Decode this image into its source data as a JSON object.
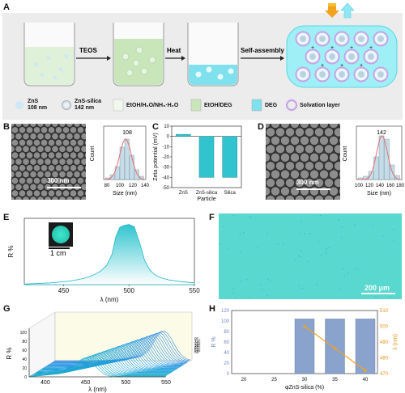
{
  "panels": {
    "A": {
      "letter": "A",
      "step1": "TEOS",
      "step2": "Heat",
      "step3": "Self-assembly",
      "legend": [
        {
          "label_line1": "ZnS",
          "label_line2": "108 nm"
        },
        {
          "label_line1": "ZnS-silica",
          "label_line2": "142 nm"
        },
        {
          "label_line1": "EtOH/H₂O/NH₃·H₂O",
          "label_line2": ""
        },
        {
          "label_line1": "EtOH/DEG",
          "label_line2": ""
        },
        {
          "label_line1": "DEG",
          "label_line2": ""
        },
        {
          "label_line1": "Solvation layer",
          "label_line2": ""
        }
      ]
    },
    "B": {
      "letter": "B",
      "scalebar": "300 nm"
    },
    "B_hist": {
      "peak_label": "108",
      "xlabel": "Size (nm)",
      "ylabel": "Count",
      "xticks": [
        "80",
        "100",
        "120",
        "140"
      ]
    },
    "C": {
      "letter": "C"
    },
    "D": {
      "letter": "D",
      "scalebar": "300 nm"
    },
    "D_hist": {
      "peak_label": "142",
      "xlabel": "Size (nm)",
      "ylabel": "Count",
      "xticks": [
        "100",
        "120",
        "140",
        "160",
        "180"
      ]
    },
    "E": {
      "letter": "E",
      "inset_scalebar": "1 cm"
    },
    "F": {
      "letter": "F",
      "scalebar": "200 μm"
    },
    "G": {
      "letter": "G"
    },
    "H": {
      "letter": "H"
    }
  },
  "chart_data": [
    {
      "id": "C",
      "type": "bar",
      "categories": [
        "ZnS",
        "ZnS-silica",
        "Silica"
      ],
      "values": [
        2,
        -40,
        -40
      ],
      "xlabel": "Particle",
      "ylabel": "Zeta potential (mV)",
      "ylim": [
        -50,
        10
      ],
      "yticks": [
        10,
        0,
        -10,
        -20,
        -30,
        -40,
        -50
      ]
    },
    {
      "id": "E",
      "type": "area",
      "xlabel": "λ (nm)",
      "ylabel": "R %",
      "xlim": [
        420,
        550
      ],
      "xticks": [
        450,
        500,
        550
      ],
      "x": [
        420,
        440,
        455,
        465,
        472,
        478,
        483,
        487,
        490,
        493,
        496,
        500,
        504,
        508,
        512,
        516,
        520,
        525,
        530,
        540,
        550
      ],
      "y": [
        1,
        3,
        6,
        10,
        15,
        22,
        32,
        50,
        80,
        95,
        98,
        100,
        96,
        70,
        40,
        24,
        16,
        11,
        8,
        5,
        3
      ]
    },
    {
      "id": "G",
      "type": "line",
      "xlabel": "λ (nm)",
      "ylabel": "R %",
      "zlabel": "Angle",
      "xlim": [
        380,
        550
      ],
      "xticks": [
        400,
        450,
        500,
        550
      ],
      "yticks": [
        0,
        20,
        40,
        60,
        80,
        100
      ],
      "angle_ticks": [
        "0°",
        "10°",
        "20°",
        "30°",
        "40°",
        "50°",
        "60°"
      ],
      "peak_wavelength_at_0deg": 515,
      "peak_wavelength_at_60deg": 450
    },
    {
      "id": "H",
      "type": "bar",
      "categories": [
        20,
        25,
        30,
        35,
        40
      ],
      "series": [
        {
          "name": "R %",
          "values": [
            0,
            0,
            104,
            104,
            104
          ]
        },
        {
          "name": "λ (nm)",
          "values": [
            null,
            null,
            500,
            486,
            472
          ]
        }
      ],
      "xlabel": "φZnS-silica (%)",
      "ylabel": "R %",
      "y2label": "λ (nm)",
      "ylim": [
        0,
        120
      ],
      "y2lim": [
        470,
        510
      ],
      "yticks": [
        0,
        20,
        40,
        60,
        80,
        100,
        120
      ],
      "y2ticks": [
        470,
        480,
        490,
        500,
        510
      ],
      "xticks": [
        20,
        25,
        30,
        35,
        40
      ]
    }
  ],
  "colors": {
    "accent": "#31c4cf",
    "line_h": "#f4a21c",
    "bar_h": "#8aa3cc"
  }
}
